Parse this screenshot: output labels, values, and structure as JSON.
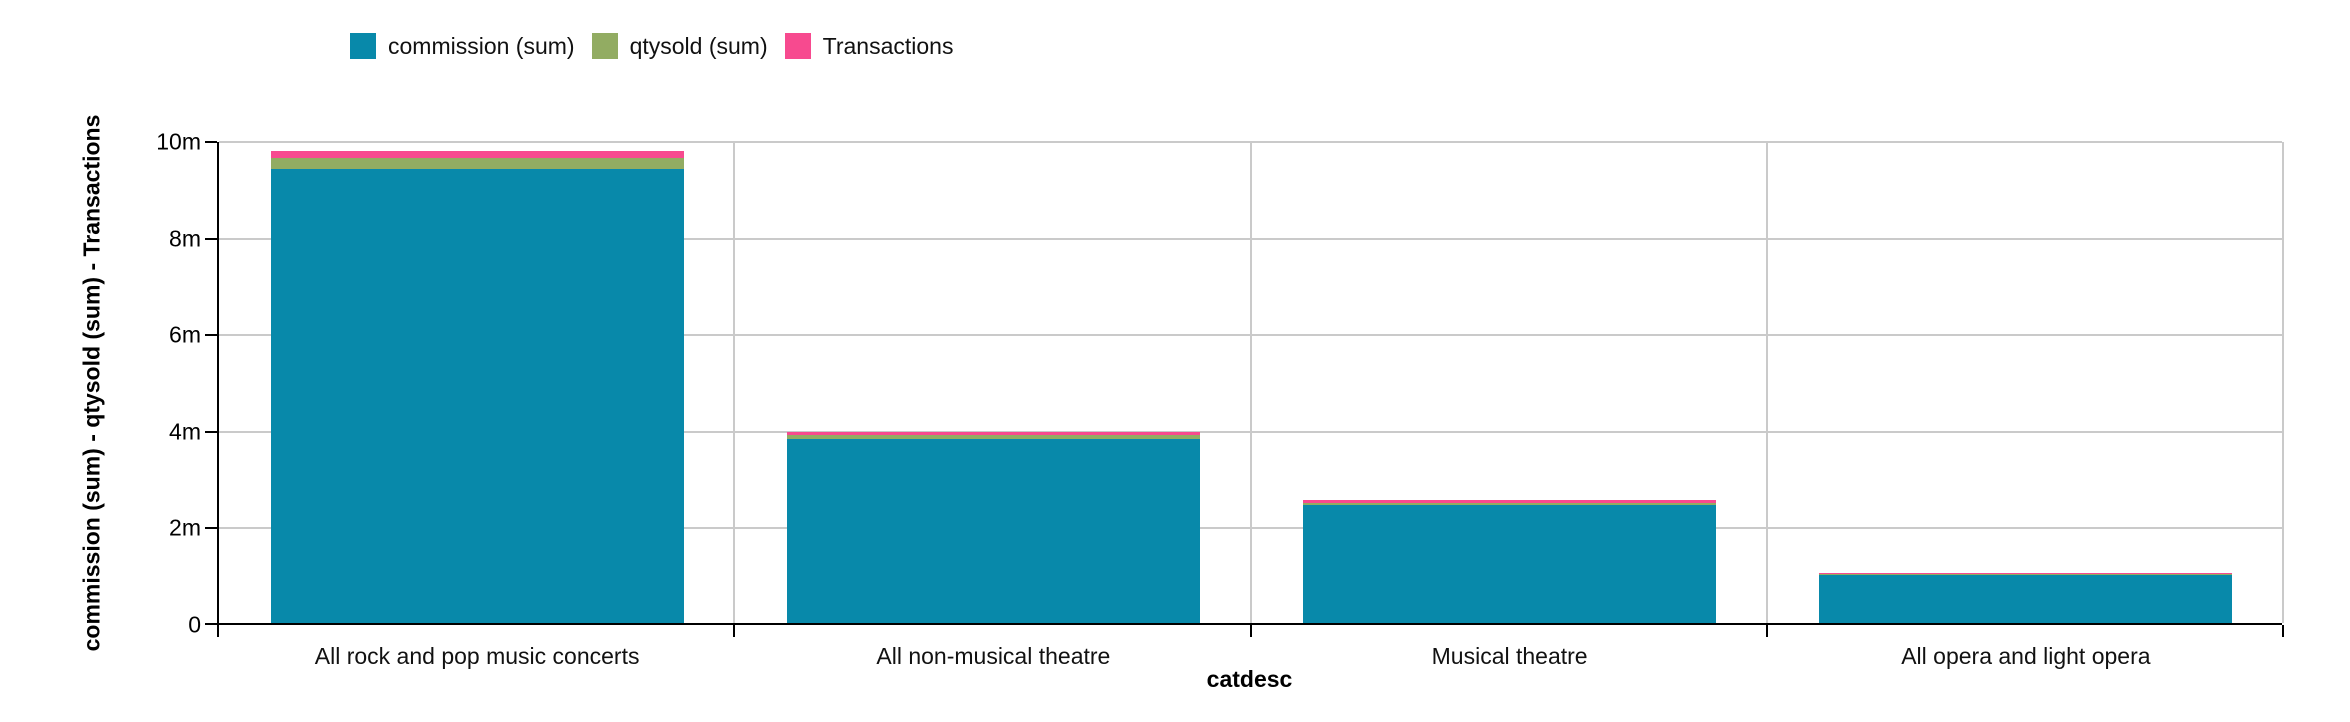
{
  "legend": {
    "items": [
      {
        "label": "commission (sum)",
        "color": "#0889aa"
      },
      {
        "label": "qtysold (sum)",
        "color": "#92ac62"
      },
      {
        "label": "Transactions",
        "color": "#f74a8f"
      }
    ]
  },
  "chart_data": {
    "type": "bar",
    "stacked": true,
    "title": "",
    "xlabel": "catdesc",
    "ylabel": "commission (sum) - qtysold (sum) - Transactions",
    "categories": [
      "All rock and pop music concerts",
      "All non-musical theatre",
      "Musical theatre",
      "All opera and light opera"
    ],
    "series": [
      {
        "name": "commission (sum)",
        "color": "#0889aa",
        "values": [
          9400000,
          3810000,
          2440000,
          990000
        ]
      },
      {
        "name": "qtysold (sum)",
        "color": "#92ac62",
        "values": [
          230000,
          80000,
          50000,
          30000
        ]
      },
      {
        "name": "Transactions",
        "color": "#f74a8f",
        "values": [
          140000,
          60000,
          50000,
          20000
        ]
      }
    ],
    "ylim": [
      0,
      10000000
    ],
    "yticks": [
      {
        "value": 0,
        "label": "0"
      },
      {
        "value": 2000000,
        "label": "2m"
      },
      {
        "value": 4000000,
        "label": "4m"
      },
      {
        "value": 6000000,
        "label": "6m"
      },
      {
        "value": 8000000,
        "label": "8m"
      },
      {
        "value": 10000000,
        "label": "10m"
      }
    ],
    "grid": true,
    "legend_position": "top-left",
    "colors": {
      "axis": "#000000",
      "gridline": "#cacaca",
      "background": "#ffffff"
    }
  }
}
